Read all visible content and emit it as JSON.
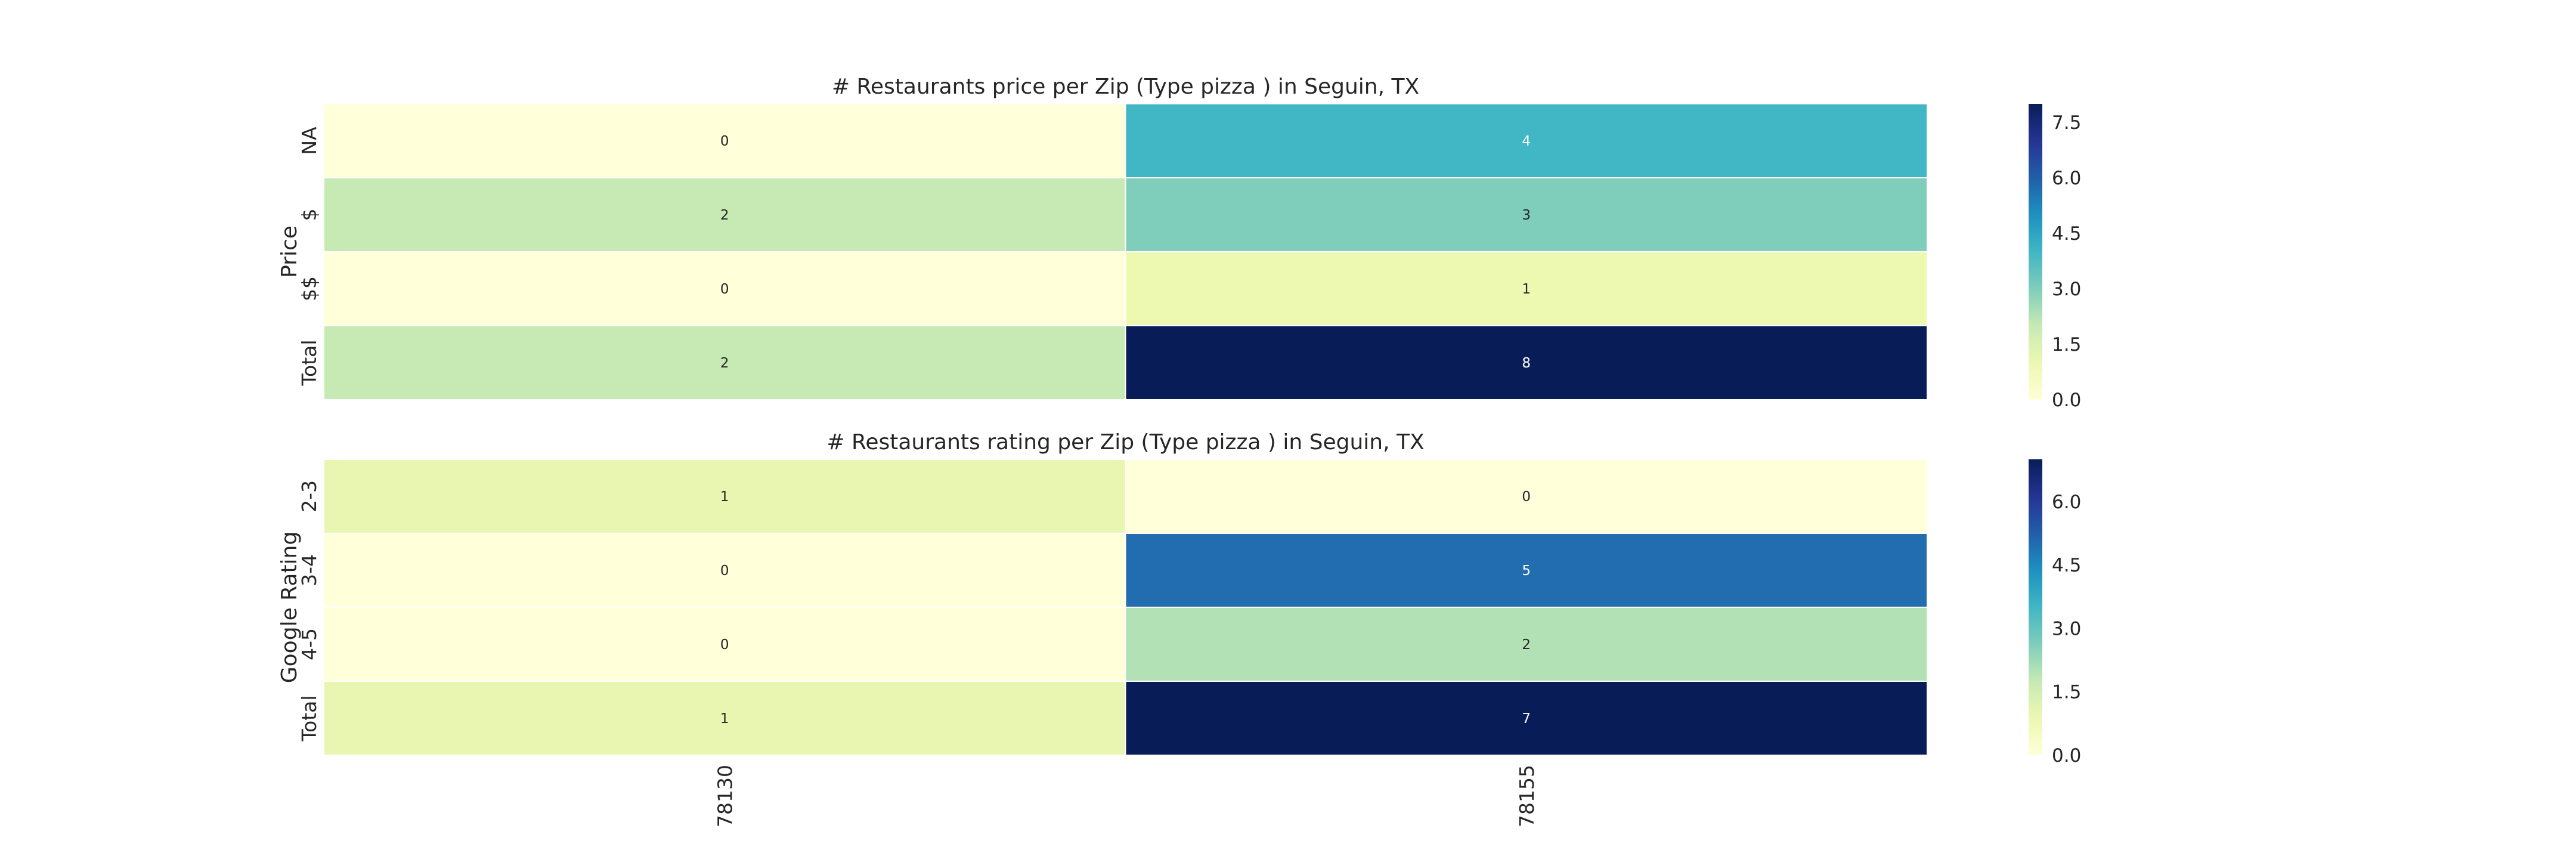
{
  "chart_data": [
    {
      "type": "heatmap",
      "title": "# Restaurants price per Zip (Type pizza ) in Seguin, TX",
      "ylabel": "Price",
      "xlabel": "",
      "rows": [
        "NA",
        "$",
        "$$",
        "Total"
      ],
      "columns": [
        "78130",
        "78155"
      ],
      "values": [
        [
          0,
          4
        ],
        [
          2,
          3
        ],
        [
          0,
          1
        ],
        [
          2,
          8
        ]
      ],
      "colorbar": {
        "min": 0,
        "max": 8,
        "ticks": [
          "0.0",
          "1.5",
          "3.0",
          "4.5",
          "6.0",
          "7.5"
        ],
        "tick_values": [
          0,
          1.5,
          3,
          4.5,
          6,
          7.5
        ]
      },
      "colormap": "YlGnBu",
      "show_x_tick_labels": false
    },
    {
      "type": "heatmap",
      "title": "# Restaurants rating per Zip (Type pizza ) in Seguin, TX",
      "ylabel": "Google Rating",
      "xlabel": "",
      "rows": [
        "2-3",
        "3-4",
        "4-5",
        "Total"
      ],
      "columns": [
        "78130",
        "78155"
      ],
      "values": [
        [
          1,
          0
        ],
        [
          0,
          5
        ],
        [
          0,
          2
        ],
        [
          1,
          7
        ]
      ],
      "colorbar": {
        "min": 0,
        "max": 7,
        "ticks": [
          "0.0",
          "1.5",
          "3.0",
          "4.5",
          "6.0"
        ],
        "tick_values": [
          0,
          1.5,
          3,
          4.5,
          6
        ]
      },
      "colormap": "YlGnBu",
      "show_x_tick_labels": true
    }
  ],
  "colors": {
    "colormap_stops": [
      "#ffffd9",
      "#edf8b1",
      "#c7e9b4",
      "#7fcdbb",
      "#41b6c4",
      "#1d91c0",
      "#225ea8",
      "#253494",
      "#081d58"
    ],
    "cell_border": "#ffffff",
    "text_dark": "#262626",
    "text_light": "#ffffff"
  }
}
